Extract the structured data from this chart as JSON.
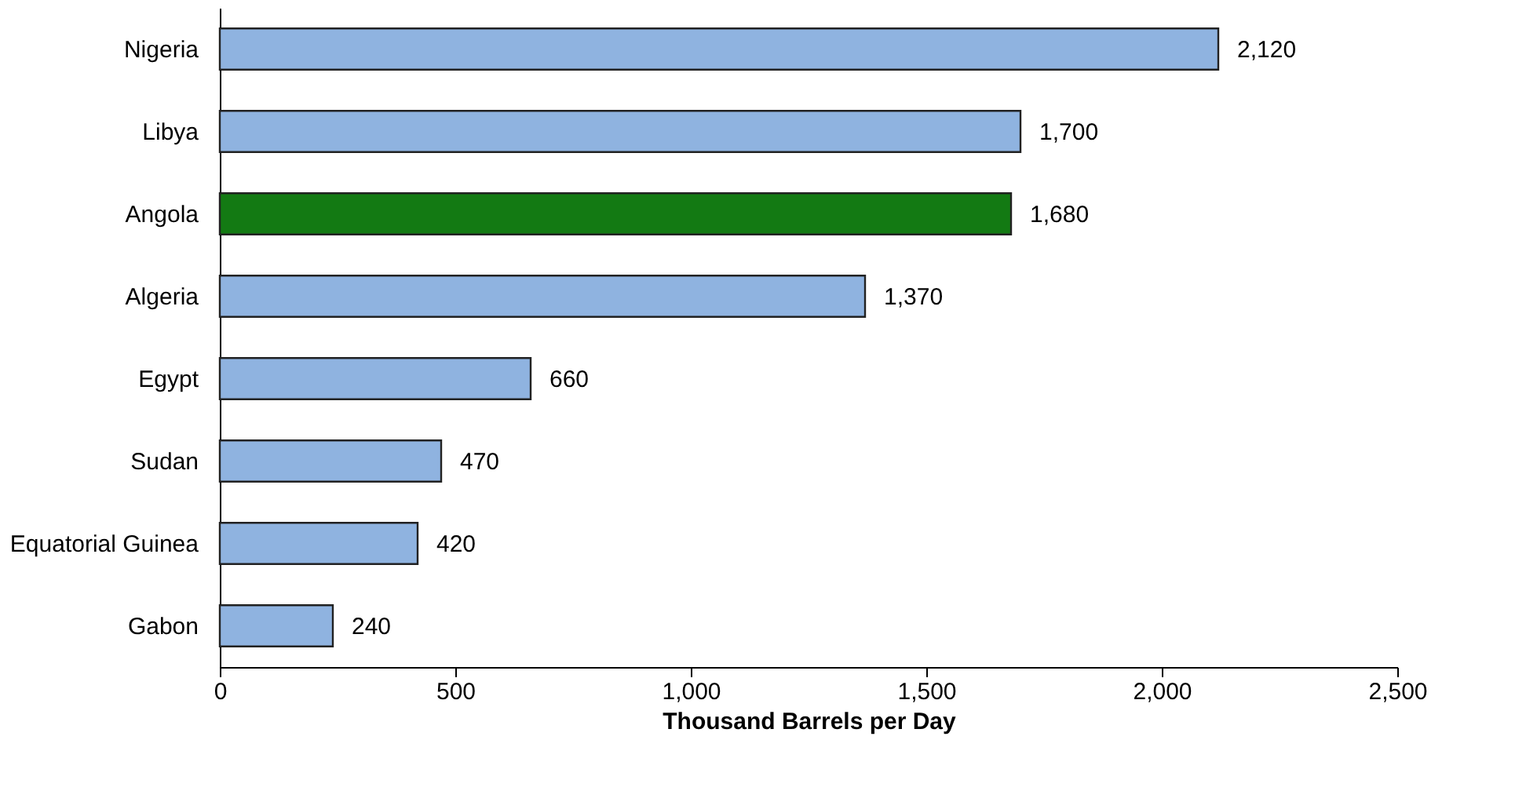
{
  "chart_data": {
    "type": "bar",
    "orientation": "horizontal",
    "xlabel": "Thousand Barrels per Day",
    "categories": [
      "Nigeria",
      "Libya",
      "Angola",
      "Algeria",
      "Egypt",
      "Sudan",
      "Equatorial Guinea",
      "Gabon"
    ],
    "values": [
      2120,
      1700,
      1680,
      1370,
      660,
      470,
      420,
      240
    ],
    "colors": [
      "#8fb3e0",
      "#8fb3e0",
      "#137a13",
      "#8fb3e0",
      "#8fb3e0",
      "#8fb3e0",
      "#8fb3e0",
      "#8fb3e0"
    ],
    "value_labels": [
      "2,120",
      "1,700",
      "1,680",
      "1,370",
      "660",
      "470",
      "420",
      "240"
    ],
    "xlim": [
      0,
      2500
    ],
    "xticks": [
      0,
      500,
      {
        "value": 1000,
        "label": "1,000"
      },
      {
        "value": 1500,
        "label": "1,500"
      },
      {
        "value": 2000,
        "label": "2,000"
      },
      {
        "value": 2500,
        "label": "2,500"
      }
    ],
    "grid": false
  }
}
